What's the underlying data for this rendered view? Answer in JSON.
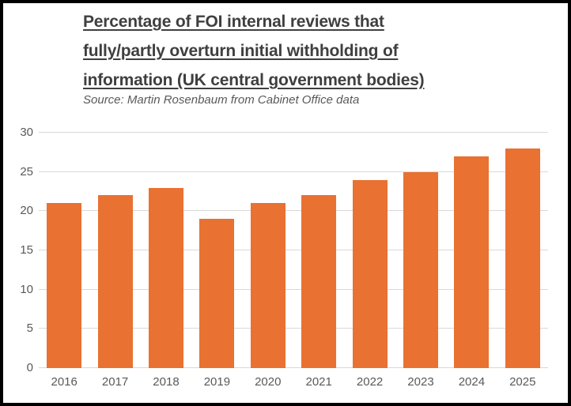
{
  "chart_data": {
    "type": "bar",
    "title": "Percentage of FOI internal reviews that fully/partly overturn initial withholding of information (UK central government bodies)",
    "title_lines": [
      "Percentage of FOI internal reviews that",
      "fully/partly overturn initial withholding of",
      "information (UK central government bodies)"
    ],
    "subtitle": "Source: Martin Rosenbaum from Cabinet Office data",
    "categories": [
      "2016",
      "2017",
      "2018",
      "2019",
      "2020",
      "2021",
      "2022",
      "2023",
      "2024",
      "2025"
    ],
    "values": [
      21,
      22,
      23,
      19,
      21,
      22,
      24,
      25,
      27,
      28
    ],
    "xlabel": "",
    "ylabel": "",
    "ylim": [
      0,
      30
    ],
    "yticks": [
      0,
      5,
      10,
      15,
      20,
      25,
      30
    ],
    "grid": "horizontal",
    "legend": "none",
    "colors": {
      "bar": "#e97132",
      "grid": "#d9d9d9",
      "axis_text": "#595959",
      "title_text": "#3f3f3f",
      "subtitle_text": "#595959",
      "frame_border": "#000000",
      "background": "#ffffff"
    }
  }
}
